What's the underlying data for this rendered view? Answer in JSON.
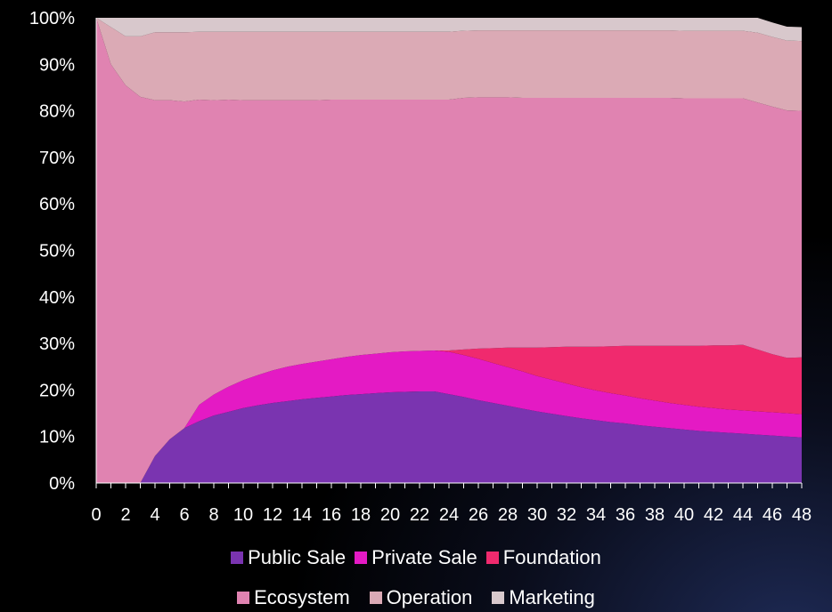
{
  "chart_data": {
    "type": "area",
    "stacked": true,
    "x": [
      0,
      1,
      2,
      3,
      4,
      5,
      6,
      7,
      8,
      9,
      10,
      11,
      12,
      13,
      14,
      15,
      16,
      17,
      18,
      19,
      20,
      21,
      22,
      23,
      24,
      25,
      26,
      27,
      28,
      29,
      30,
      31,
      32,
      33,
      34,
      35,
      36,
      37,
      38,
      39,
      40,
      41,
      42,
      43,
      44,
      45,
      46,
      47,
      48
    ],
    "x_ticks": [
      "0",
      "2",
      "4",
      "6",
      "8",
      "10",
      "12",
      "14",
      "16",
      "18",
      "20",
      "22",
      "24",
      "26",
      "28",
      "30",
      "32",
      "34",
      "36",
      "38",
      "40",
      "42",
      "44",
      "46",
      "48"
    ],
    "y_ticks": [
      "0%",
      "10%",
      "20%",
      "30%",
      "40%",
      "50%",
      "60%",
      "70%",
      "80%",
      "90%",
      "100%"
    ],
    "ylim": [
      0,
      100
    ],
    "series": [
      {
        "name": "Public Sale",
        "color": "#7a34b0",
        "values": [
          0,
          0,
          0,
          0,
          5.8,
          9.4,
          11.8,
          13.3,
          14.5,
          15.3,
          16.1,
          16.7,
          17.2,
          17.6,
          18.0,
          18.3,
          18.6,
          18.9,
          19.1,
          19.3,
          19.5,
          19.6,
          19.7,
          19.7,
          19.1,
          18.5,
          17.8,
          17.2,
          16.6,
          16.0,
          15.4,
          14.9,
          14.4,
          13.9,
          13.5,
          13.1,
          12.8,
          12.4,
          12.1,
          11.8,
          11.5,
          11.2,
          11.0,
          10.8,
          10.6,
          10.4,
          10.2,
          10.0,
          9.8
        ]
      },
      {
        "name": "Private Sale",
        "color": "#e41ac4",
        "values": [
          0,
          0,
          0,
          0,
          0,
          0,
          0,
          3.5,
          4.5,
          5.4,
          6.0,
          6.5,
          7.0,
          7.4,
          7.6,
          7.8,
          8.0,
          8.2,
          8.4,
          8.5,
          8.6,
          8.7,
          8.7,
          8.8,
          9.1,
          9.0,
          8.9,
          8.6,
          8.3,
          8.0,
          7.6,
          7.3,
          7.0,
          6.7,
          6.4,
          6.2,
          6.0,
          5.8,
          5.6,
          5.4,
          5.3,
          5.2,
          5.1,
          5.0,
          5.0,
          5.0,
          5.0,
          5.0,
          5.0
        ]
      },
      {
        "name": "Foundation",
        "color": "#f02a6e",
        "values": [
          0,
          0,
          0,
          0,
          0,
          0,
          0,
          0,
          0,
          0,
          0,
          0,
          0,
          0,
          0,
          0,
          0,
          0,
          0,
          0,
          0,
          0,
          0,
          0,
          0.3,
          1.2,
          2.2,
          3.2,
          4.2,
          5.1,
          6.1,
          7.0,
          7.9,
          8.7,
          9.4,
          10.1,
          10.7,
          11.3,
          11.8,
          12.3,
          12.7,
          13.1,
          13.5,
          13.8,
          14.1,
          13.3,
          12.5,
          11.9,
          12.2
        ]
      },
      {
        "name": "Ecosystem",
        "color": "#e083b1",
        "values": [
          100,
          90,
          85.5,
          83.0,
          76.5,
          72.9,
          70.2,
          65.6,
          63.3,
          61.7,
          60.2,
          59.1,
          58.1,
          57.3,
          56.7,
          56.2,
          55.8,
          55.3,
          54.9,
          54.6,
          54.3,
          54.1,
          54.0,
          53.9,
          53.9,
          54.1,
          54.0,
          53.9,
          53.8,
          53.7,
          53.7,
          53.6,
          53.5,
          53.5,
          53.5,
          53.4,
          53.3,
          53.3,
          53.3,
          53.3,
          53.2,
          53.2,
          53.1,
          53.1,
          53.0,
          53.1,
          53.2,
          53.2,
          53.0
        ]
      },
      {
        "name": "Operation",
        "color": "#dbaab5",
        "values": [
          0,
          8,
          10.5,
          13.0,
          14.6,
          14.6,
          14.9,
          14.6,
          14.7,
          14.6,
          14.7,
          14.7,
          14.7,
          14.7,
          14.7,
          14.7,
          14.6,
          14.6,
          14.6,
          14.6,
          14.6,
          14.6,
          14.6,
          14.6,
          14.6,
          14.4,
          14.4,
          14.4,
          14.4,
          14.5,
          14.5,
          14.5,
          14.5,
          14.5,
          14.5,
          14.5,
          14.5,
          14.5,
          14.5,
          14.5,
          14.5,
          14.5,
          14.5,
          14.5,
          14.5,
          15.0,
          15.0,
          15.0,
          15.0
        ]
      },
      {
        "name": "Marketing",
        "color": "#d8c8cc",
        "values": [
          0,
          2,
          4,
          4,
          3.1,
          3.1,
          3.1,
          3.0,
          3.0,
          3.0,
          3.0,
          3.0,
          3.0,
          3.0,
          3.0,
          3.0,
          3.0,
          3.0,
          3.0,
          3.0,
          3.0,
          3.0,
          3.0,
          3.0,
          3.0,
          2.8,
          2.7,
          2.7,
          2.7,
          2.7,
          2.7,
          2.7,
          2.7,
          2.7,
          2.7,
          2.7,
          2.7,
          2.7,
          2.7,
          2.7,
          2.8,
          2.8,
          2.8,
          2.8,
          2.8,
          3.2,
          3.1,
          3.0,
          3.0
        ]
      }
    ]
  }
}
